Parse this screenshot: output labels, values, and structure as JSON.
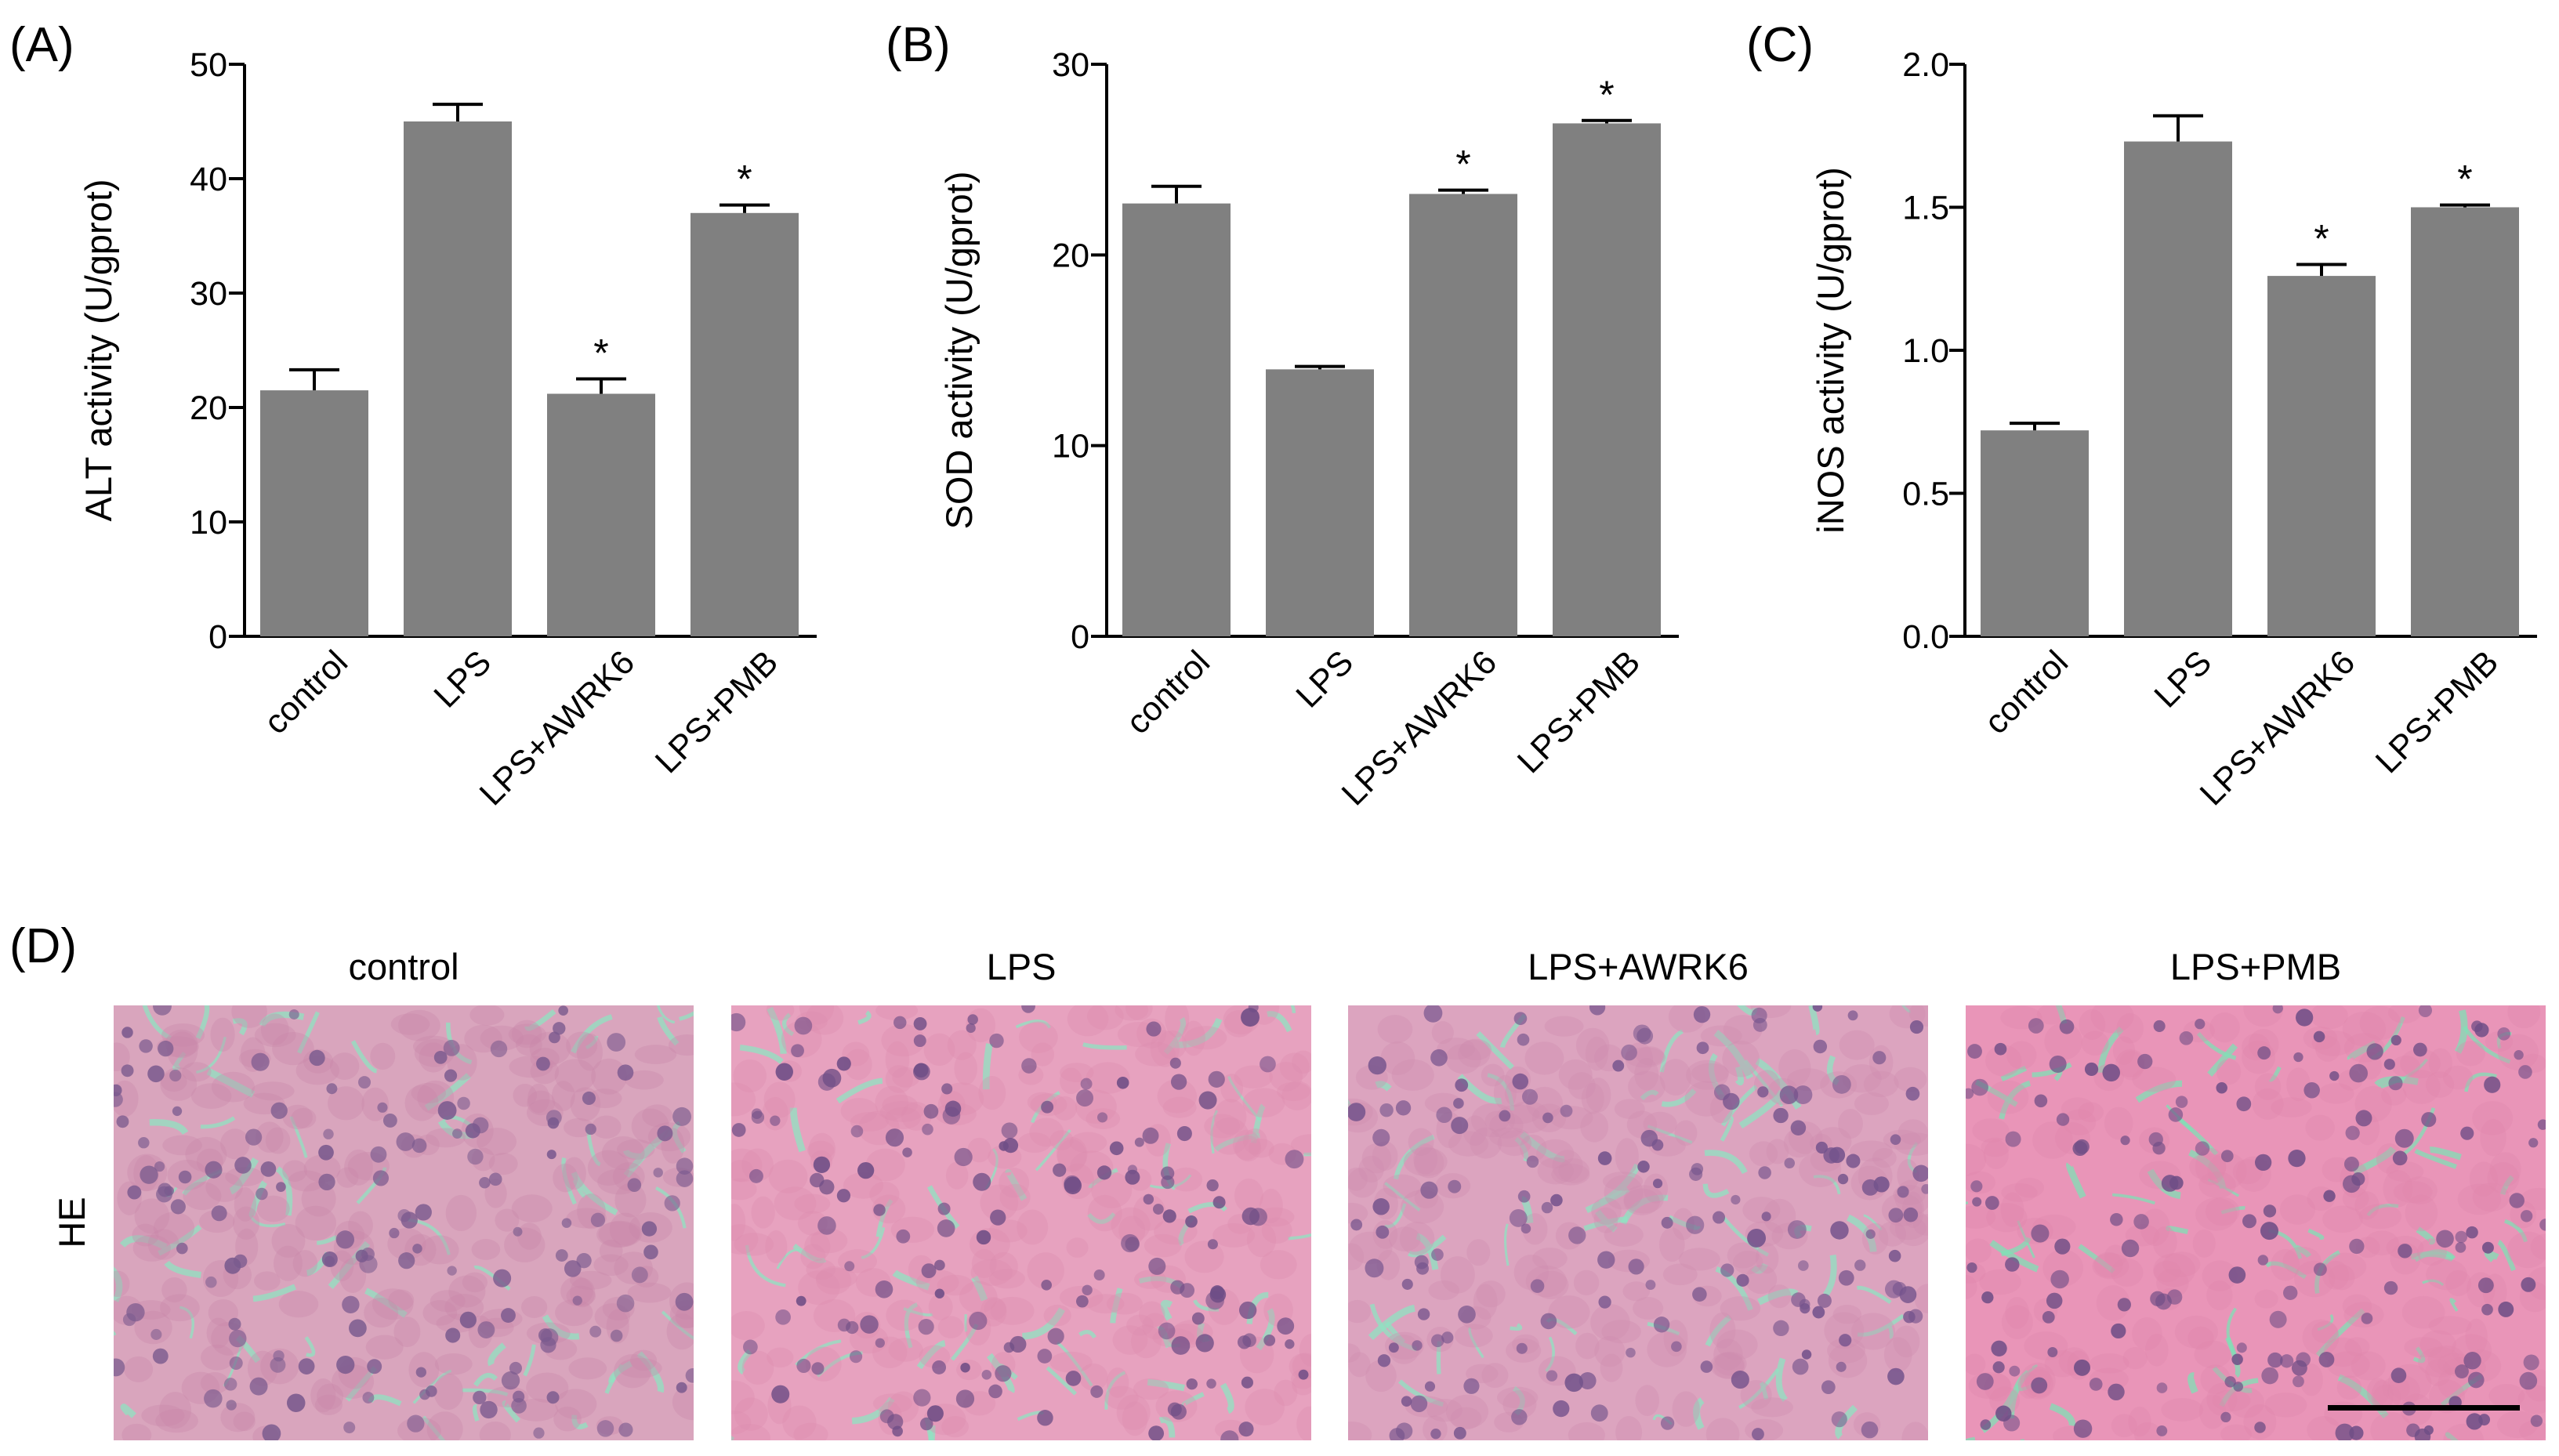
{
  "chart_data": [
    {
      "panel_label": "(A)",
      "type": "bar",
      "categories": [
        "control",
        "LPS",
        "LPS+AWRK6",
        "LPS+PMB"
      ],
      "values": [
        21.5,
        45.0,
        21.2,
        37.0
      ],
      "errors": [
        1.8,
        1.5,
        1.3,
        0.7
      ],
      "significance": [
        "",
        "",
        "*",
        "*"
      ],
      "ylabel": "ALT activity (U/gprot)",
      "ylim": [
        0,
        50
      ],
      "yticks": [
        "0",
        "10",
        "20",
        "30",
        "40",
        "50"
      ],
      "grid": false,
      "bar_color": "#808080"
    },
    {
      "panel_label": "(B)",
      "type": "bar",
      "categories": [
        "control",
        "LPS",
        "LPS+AWRK6",
        "LPS+PMB"
      ],
      "values": [
        22.7,
        14.0,
        23.2,
        26.9
      ],
      "errors": [
        0.9,
        0.15,
        0.2,
        0.15
      ],
      "significance": [
        "",
        "",
        "*",
        "*"
      ],
      "ylabel": "SOD activity (U/gprot)",
      "ylim": [
        0,
        30
      ],
      "yticks": [
        "0",
        "10",
        "20",
        "30"
      ],
      "grid": false,
      "bar_color": "#808080"
    },
    {
      "panel_label": "(C)",
      "type": "bar",
      "categories": [
        "control",
        "LPS",
        "LPS+AWRK6",
        "LPS+PMB"
      ],
      "values": [
        0.72,
        1.73,
        1.26,
        1.5
      ],
      "errors": [
        0.025,
        0.09,
        0.04,
        0.008
      ],
      "significance": [
        "",
        "",
        "*",
        "*"
      ],
      "ylabel": "iNOS activity (U/gprot)",
      "ylim": [
        0,
        2.0
      ],
      "yticks": [
        "0.0",
        "0.5",
        "1.0",
        "1.5",
        "2.0"
      ],
      "grid": false,
      "bar_color": "#808080"
    }
  ],
  "histology": {
    "panel_label": "(D)",
    "row_label": "HE",
    "images": [
      {
        "title": "control",
        "background": "#d9a5bd",
        "cell": "#c887aa",
        "nucleus": "#7a5a8e",
        "sinusoid": "#8fe3c2"
      },
      {
        "title": "LPS",
        "background": "#e7a2bf",
        "cell": "#dc8db0",
        "nucleus": "#6f4e86",
        "sinusoid": "#8fe3c2"
      },
      {
        "title": "LPS+AWRK6",
        "background": "#dca4bf",
        "cell": "#cf8cae",
        "nucleus": "#74538c",
        "sinusoid": "#8fe3c2"
      },
      {
        "title": "LPS+PMB",
        "background": "#e995b8",
        "cell": "#df86ad",
        "nucleus": "#6f4e86",
        "sinusoid": "#7fe0b6"
      }
    ],
    "scale_bar_color": "#000000"
  }
}
